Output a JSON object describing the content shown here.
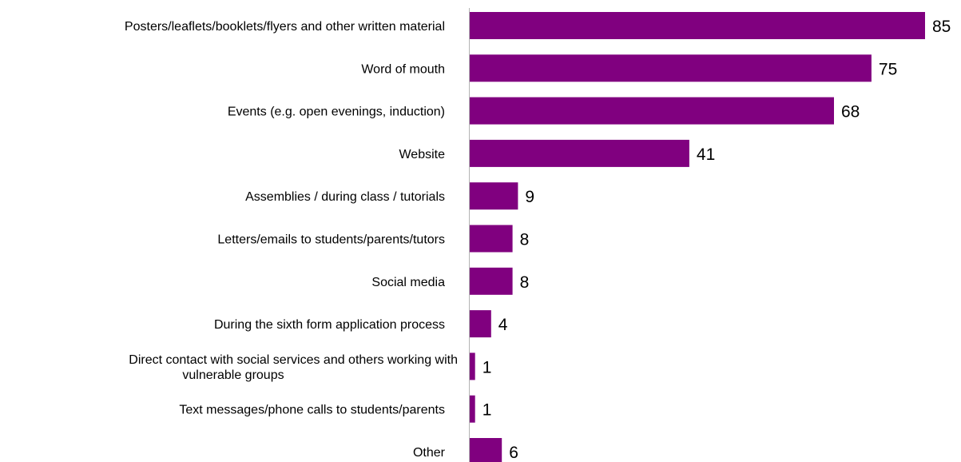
{
  "chart_data": {
    "type": "bar",
    "orientation": "horizontal",
    "categories": [
      "Posters/leaflets/booklets/flyers and other written material",
      "Word of mouth",
      "Events (e.g. open evenings, induction)",
      "Website",
      "Assemblies / during class / tutorials",
      "Letters/emails to students/parents/tutors",
      "Social media",
      "During the sixth form application process",
      "Direct contact with social services and others working with vulnerable groups",
      "Text messages/phone calls to students/parents",
      "Other"
    ],
    "category_label_lines": [
      [
        "Posters/leaflets/booklets/flyers and other written material"
      ],
      [
        "Word of mouth"
      ],
      [
        "Events (e.g. open evenings, induction)"
      ],
      [
        "Website"
      ],
      [
        "Assemblies / during class / tutorials"
      ],
      [
        "Letters/emails to students/parents/tutors"
      ],
      [
        "Social media"
      ],
      [
        "During the sixth form application process"
      ],
      [
        "Direct contact with social services and others working with",
        "vulnerable groups"
      ],
      [
        "Text messages/phone calls to students/parents"
      ],
      [
        "Other"
      ]
    ],
    "values": [
      85,
      75,
      68,
      41,
      9,
      8,
      8,
      4,
      1,
      1,
      6
    ],
    "data_labels": [
      "85",
      "75",
      "68",
      "41",
      "9",
      "8",
      "8",
      "4",
      "1",
      "1",
      "6"
    ],
    "bar_color": "#80007F",
    "xlim": [
      0,
      85
    ],
    "title": "",
    "xlabel": "",
    "ylabel": "",
    "grid": false,
    "legend": "none"
  }
}
